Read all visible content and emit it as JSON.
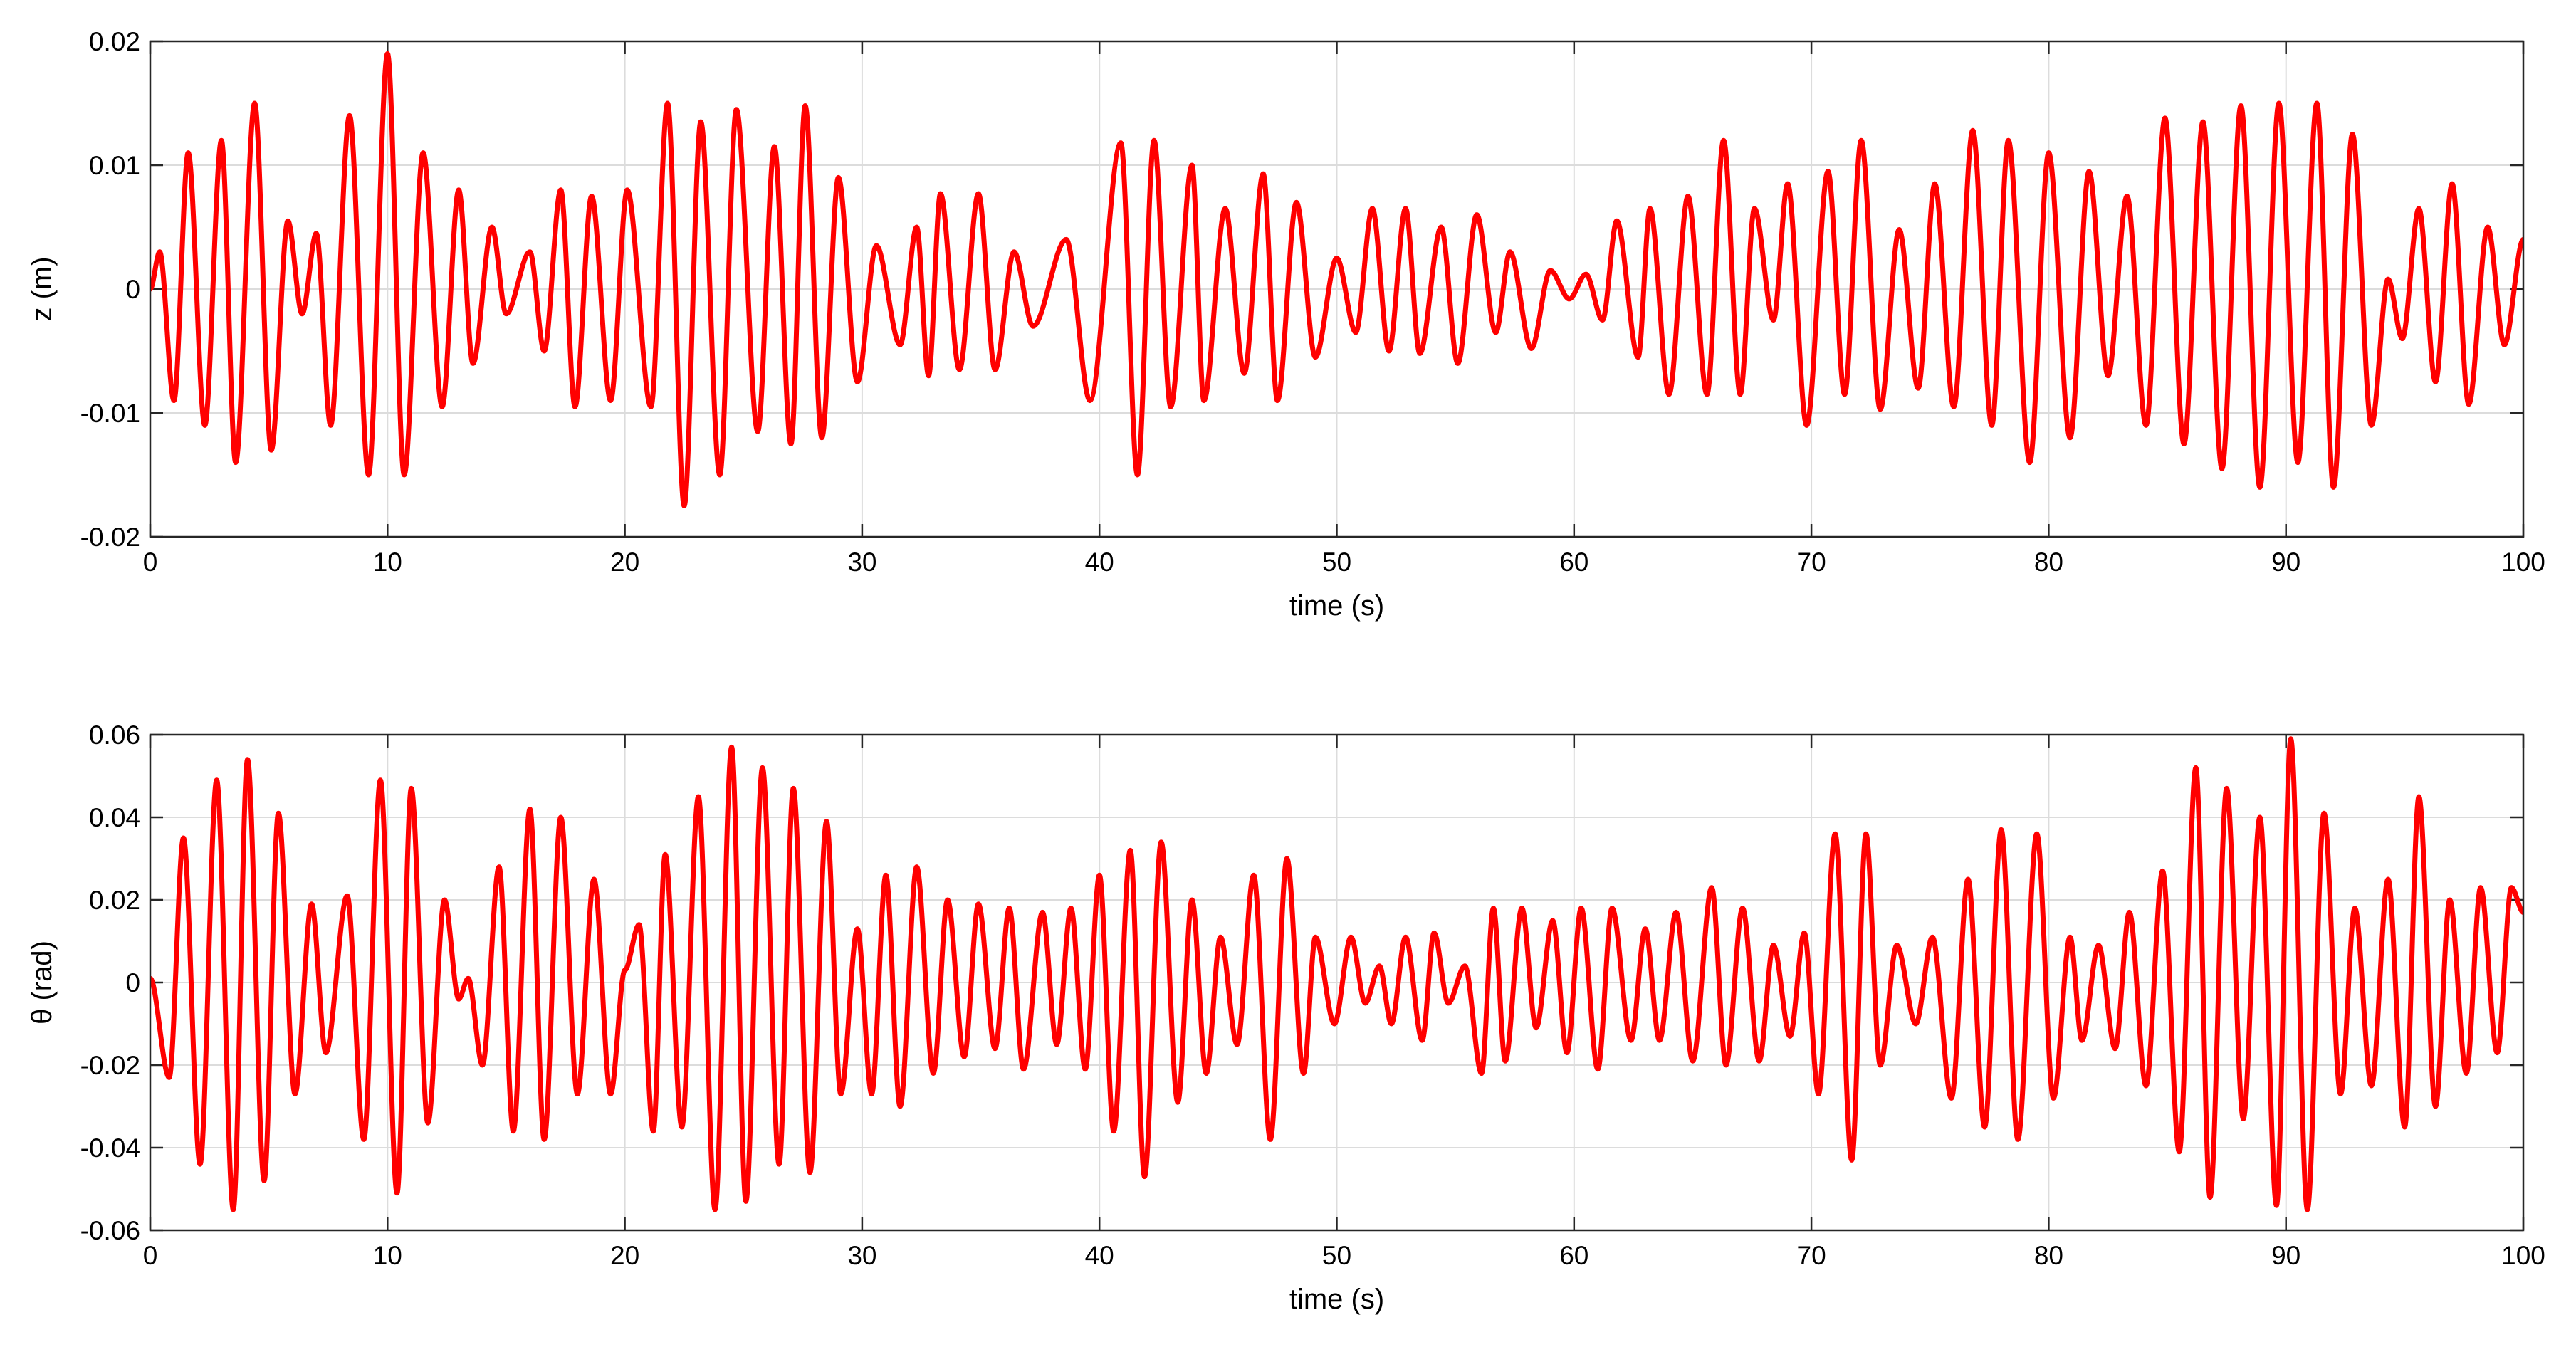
{
  "chart_data": [
    {
      "type": "line",
      "xlabel": "time (s)",
      "ylabel": "z (m)",
      "xlim": [
        0,
        100
      ],
      "xticks": [
        0,
        10,
        20,
        30,
        40,
        50,
        60,
        70,
        80,
        90,
        100
      ],
      "ylim": [
        -0.02,
        0.02
      ],
      "yticks": [
        -0.02,
        -0.01,
        0,
        0.01,
        0.02
      ],
      "grid": true,
      "x": [
        0,
        0.4,
        1.0,
        1.6,
        2.3,
        3.0,
        3.6,
        4.4,
        5.1,
        5.8,
        6.4,
        7.0,
        7.6,
        8.4,
        9.2,
        10.0,
        10.7,
        11.5,
        12.3,
        13.0,
        13.6,
        14.4,
        15.0,
        16.0,
        16.6,
        17.3,
        17.9,
        18.6,
        19.4,
        20.1,
        21.1,
        21.8,
        22.5,
        23.2,
        24.0,
        24.7,
        25.6,
        26.3,
        27.0,
        27.6,
        28.3,
        29.0,
        29.8,
        30.6,
        31.6,
        32.3,
        32.8,
        33.3,
        34.1,
        34.9,
        35.6,
        36.4,
        37.2,
        38.6,
        39.6,
        40.9,
        41.6,
        42.3,
        43.0,
        43.9,
        44.4,
        45.3,
        46.1,
        46.9,
        47.5,
        48.3,
        49.1,
        50.0,
        50.8,
        51.5,
        52.2,
        52.9,
        53.5,
        54.4,
        55.1,
        55.9,
        56.7,
        57.3,
        58.2,
        59.0,
        59.8,
        60.5,
        61.2,
        61.8,
        62.7,
        63.2,
        64.0,
        64.8,
        65.6,
        66.3,
        67.0,
        67.6,
        68.4,
        69.0,
        69.8,
        70.7,
        71.4,
        72.1,
        72.9,
        73.7,
        74.5,
        75.2,
        76.0,
        76.8,
        77.6,
        78.3,
        79.2,
        80.0,
        80.9,
        81.7,
        82.5,
        83.3,
        84.1,
        84.9,
        85.7,
        86.5,
        87.3,
        88.1,
        88.9,
        89.7,
        90.5,
        91.3,
        92.0,
        92.8,
        93.6,
        94.3,
        94.9,
        95.6,
        96.3,
        97.0,
        97.7,
        98.5,
        99.2,
        100
      ],
      "series": [
        {
          "color": "#ff0000",
          "values": [
            0,
            0.003,
            -0.009,
            0.011,
            -0.011,
            0.012,
            -0.014,
            0.015,
            -0.013,
            0.0055,
            -0.002,
            0.0045,
            -0.011,
            0.014,
            -0.015,
            0.019,
            -0.015,
            0.011,
            -0.0095,
            0.008,
            -0.006,
            0.005,
            -0.002,
            0.003,
            -0.005,
            0.008,
            -0.0095,
            0.0075,
            -0.009,
            0.008,
            -0.0095,
            0.015,
            -0.0175,
            0.0135,
            -0.015,
            0.0145,
            -0.0115,
            0.0115,
            -0.0125,
            0.0148,
            -0.012,
            0.009,
            -0.0075,
            0.0035,
            -0.0045,
            0.005,
            -0.007,
            0.0077,
            -0.0065,
            0.0077,
            -0.0065,
            0.003,
            -0.003,
            0.004,
            -0.009,
            0.0118,
            -0.015,
            0.012,
            -0.0095,
            0.01,
            -0.009,
            0.0065,
            -0.0068,
            0.0093,
            -0.009,
            0.007,
            -0.0055,
            0.0025,
            -0.0035,
            0.0065,
            -0.005,
            0.0065,
            -0.0052,
            0.005,
            -0.006,
            0.006,
            -0.0035,
            0.003,
            -0.0048,
            0.0015,
            -0.0008,
            0.0012,
            -0.0025,
            0.0055,
            -0.0055,
            0.0065,
            -0.0085,
            0.0075,
            -0.0085,
            0.012,
            -0.0085,
            0.0065,
            -0.0025,
            0.0085,
            -0.011,
            0.0095,
            -0.0085,
            0.012,
            -0.0097,
            0.0048,
            -0.008,
            0.0085,
            -0.0095,
            0.0128,
            -0.011,
            0.012,
            -0.014,
            0.011,
            -0.012,
            0.0095,
            -0.007,
            0.0075,
            -0.011,
            0.0138,
            -0.0125,
            0.0135,
            -0.0145,
            0.0148,
            -0.016,
            0.015,
            -0.014,
            0.015,
            -0.016,
            0.0125,
            -0.011,
            0.0008,
            -0.004,
            0.0065,
            -0.0075,
            0.0085,
            -0.0093,
            0.005,
            -0.0045,
            0.004
          ]
        }
      ]
    },
    {
      "type": "line",
      "xlabel": "time (s)",
      "ylabel": "θ (rad)",
      "xlim": [
        0,
        100
      ],
      "xticks": [
        0,
        10,
        20,
        30,
        40,
        50,
        60,
        70,
        80,
        90,
        100
      ],
      "ylim": [
        -0.06,
        0.06
      ],
      "yticks": [
        -0.06,
        -0.04,
        -0.02,
        0,
        0.02,
        0.04,
        0.06
      ],
      "grid": true,
      "x": [
        0,
        0.8,
        1.4,
        2.1,
        2.8,
        3.5,
        4.1,
        4.8,
        5.4,
        6.1,
        6.8,
        7.4,
        8.3,
        9.0,
        9.7,
        10.4,
        11.0,
        11.7,
        12.4,
        13.0,
        13.4,
        14.0,
        14.7,
        15.3,
        16.0,
        16.6,
        17.3,
        18.0,
        18.7,
        19.4,
        20.0,
        20.6,
        21.2,
        21.7,
        22.4,
        23.1,
        23.8,
        24.5,
        25.1,
        25.8,
        26.5,
        27.1,
        27.8,
        28.5,
        29.1,
        29.8,
        30.4,
        31.0,
        31.6,
        32.3,
        33.0,
        33.6,
        34.3,
        34.9,
        35.6,
        36.2,
        36.8,
        37.6,
        38.2,
        38.8,
        39.4,
        40.0,
        40.6,
        41.3,
        41.9,
        42.6,
        43.3,
        43.9,
        44.5,
        45.1,
        45.8,
        46.5,
        47.2,
        47.9,
        48.6,
        49.1,
        49.9,
        50.6,
        51.2,
        51.8,
        52.3,
        52.9,
        53.6,
        54.1,
        54.7,
        55.4,
        56.1,
        56.6,
        57.1,
        57.8,
        58.4,
        59.1,
        59.7,
        60.3,
        61.0,
        61.6,
        62.4,
        63.0,
        63.6,
        64.3,
        65.0,
        65.8,
        66.4,
        67.1,
        67.8,
        68.4,
        69.1,
        69.7,
        70.3,
        71.0,
        71.7,
        72.3,
        72.9,
        73.6,
        74.4,
        75.1,
        75.9,
        76.6,
        77.3,
        78.0,
        78.7,
        79.5,
        80.2,
        80.9,
        81.4,
        82.1,
        82.8,
        83.4,
        84.1,
        84.8,
        85.5,
        86.2,
        86.8,
        87.5,
        88.2,
        88.9,
        89.6,
        90.2,
        90.9,
        91.6,
        92.3,
        92.9,
        93.6,
        94.3,
        95.0,
        95.6,
        96.3,
        96.9,
        97.6,
        98.2,
        98.9,
        99.5,
        100
      ],
      "series": [
        {
          "color": "#ff0000",
          "values": [
            0.001,
            -0.023,
            0.035,
            -0.044,
            0.049,
            -0.055,
            0.054,
            -0.048,
            0.041,
            -0.027,
            0.019,
            -0.017,
            0.021,
            -0.038,
            0.049,
            -0.051,
            0.047,
            -0.034,
            0.02,
            -0.004,
            0.001,
            -0.02,
            0.028,
            -0.036,
            0.042,
            -0.038,
            0.04,
            -0.027,
            0.025,
            -0.027,
            0.003,
            0.014,
            -0.036,
            0.031,
            -0.035,
            0.045,
            -0.055,
            0.057,
            -0.053,
            0.052,
            -0.044,
            0.047,
            -0.046,
            0.039,
            -0.027,
            0.013,
            -0.027,
            0.026,
            -0.03,
            0.028,
            -0.022,
            0.02,
            -0.018,
            0.019,
            -0.016,
            0.018,
            -0.021,
            0.017,
            -0.015,
            0.018,
            -0.021,
            0.026,
            -0.036,
            0.032,
            -0.047,
            0.034,
            -0.029,
            0.02,
            -0.022,
            0.011,
            -0.015,
            0.026,
            -0.038,
            0.03,
            -0.022,
            0.011,
            -0.01,
            0.011,
            -0.005,
            0.004,
            -0.01,
            0.011,
            -0.014,
            0.012,
            -0.005,
            0.004,
            -0.022,
            0.018,
            -0.019,
            0.018,
            -0.011,
            0.015,
            -0.017,
            0.018,
            -0.021,
            0.018,
            -0.014,
            0.013,
            -0.014,
            0.017,
            -0.019,
            0.023,
            -0.02,
            0.018,
            -0.019,
            0.009,
            -0.013,
            0.012,
            -0.027,
            0.036,
            -0.043,
            0.036,
            -0.02,
            0.009,
            -0.01,
            0.011,
            -0.028,
            0.025,
            -0.035,
            0.037,
            -0.038,
            0.036,
            -0.028,
            0.011,
            -0.014,
            0.009,
            -0.016,
            0.017,
            -0.025,
            0.027,
            -0.041,
            0.052,
            -0.052,
            0.047,
            -0.033,
            0.04,
            -0.054,
            0.059,
            -0.055,
            0.041,
            -0.027,
            0.018,
            -0.025,
            0.025,
            -0.035,
            0.045,
            -0.03,
            0.02,
            -0.022,
            0.023,
            -0.017,
            0.023,
            0.017
          ]
        }
      ]
    }
  ]
}
